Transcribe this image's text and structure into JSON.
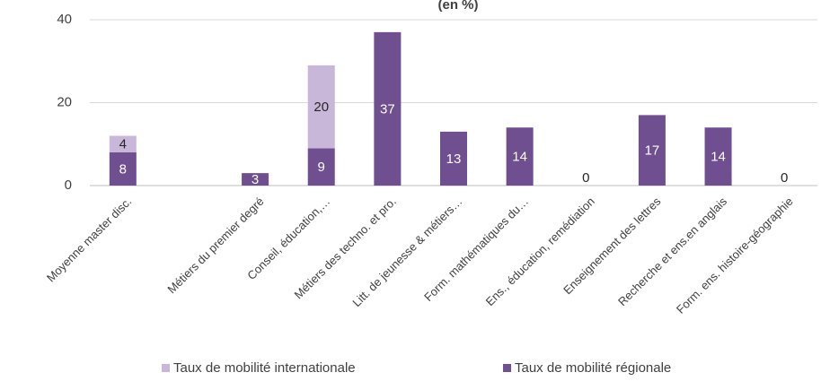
{
  "chart_data": {
    "type": "stacked_bar",
    "title": "(en %)",
    "categories": [
      "Moyenne master disc.",
      null,
      "Métiers du premier degré",
      "Conseil, éducation,…",
      "Métiers des techno. et pro.",
      "Litt. de jeunesse & métiers…",
      "Form. mathématiques du…",
      "Ens., éducation, remédiation",
      "Enseignement des lettres",
      "Recherche et ens.en anglais",
      "Form. ens. histoire-géographie"
    ],
    "series": [
      {
        "name": "Taux de mobilité régionale",
        "color": "#6f4f8f",
        "values": [
          8,
          null,
          3,
          9,
          37,
          13,
          14,
          0,
          17,
          14,
          0
        ]
      },
      {
        "name": "Taux de mobilité internationale",
        "color": "#c8b7d9",
        "values": [
          4,
          null,
          null,
          20,
          null,
          null,
          null,
          null,
          null,
          null,
          null
        ]
      }
    ],
    "legend_order": [
      1,
      0
    ],
    "ylim": [
      0,
      40
    ],
    "yticks": [
      0,
      20,
      40
    ],
    "grid": true
  }
}
